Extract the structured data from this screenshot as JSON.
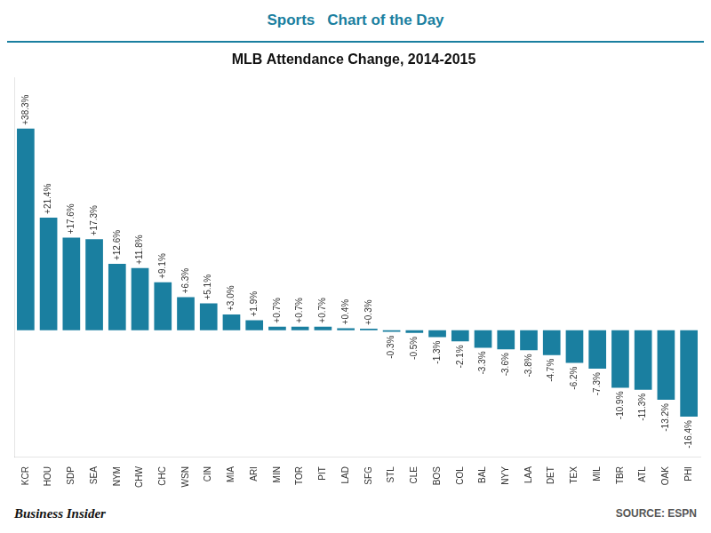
{
  "chart_data": {
    "type": "bar",
    "title": "MLB Attendance Change, 2014-2015",
    "annotations": [
      "Sports",
      "Chart of the Day",
      "Business Insider",
      "SOURCE: ESPN"
    ],
    "categories": [
      "KCR",
      "HOU",
      "SDP",
      "SEA",
      "NYM",
      "CHW",
      "CHC",
      "WSN",
      "CIN",
      "MIA",
      "ARI",
      "MIN",
      "TOR",
      "PIT",
      "LAD",
      "SFG",
      "STL",
      "CLE",
      "BOS",
      "COL",
      "BAL",
      "NYY",
      "LAA",
      "DET",
      "TEX",
      "MIL",
      "TBR",
      "ATL",
      "OAK",
      "PHI"
    ],
    "values": [
      38.3,
      21.4,
      17.6,
      17.3,
      12.6,
      11.8,
      9.1,
      6.3,
      5.1,
      3.0,
      1.9,
      0.7,
      0.7,
      0.7,
      0.4,
      0.3,
      -0.3,
      -0.5,
      -1.3,
      -2.1,
      -3.3,
      -3.6,
      -3.8,
      -4.7,
      -6.2,
      -7.3,
      -10.9,
      -11.3,
      -13.2,
      -16.4
    ],
    "value_labels": [
      "+38.3%",
      "+21.4%",
      "+17.6%",
      "+17.3%",
      "+12.6%",
      "+11.8%",
      "+9.1%",
      "+6.3%",
      "+5.1%",
      "+3.0%",
      "+1.9%",
      "+0.7%",
      "+0.7%",
      "+0.7%",
      "+0.4%",
      "+0.3%",
      "-0.3%",
      "-0.5%",
      "-1.3%",
      "-2.1%",
      "-3.3%",
      "-3.6%",
      "-3.8%",
      "-4.7%",
      "-6.2%",
      "-7.3%",
      "-10.9%",
      "-11.3%",
      "-13.2%",
      "-16.4%"
    ],
    "color": "#1a7fa0",
    "ylim": [
      -24,
      48
    ],
    "grid": false,
    "data_labels": true,
    "tick_labels": "x"
  }
}
